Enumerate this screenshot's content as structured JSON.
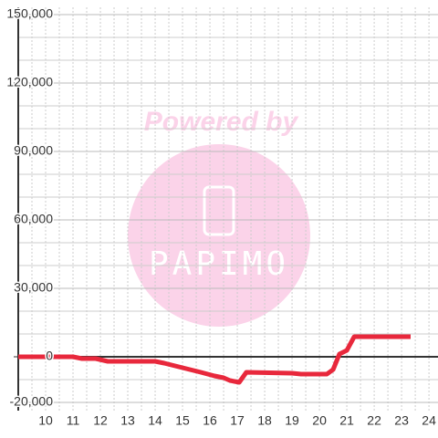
{
  "chart_data": {
    "type": "line",
    "x": [
      9,
      11,
      11.33,
      11.83,
      12.27,
      14,
      14.33,
      15,
      15.67,
      16.17,
      16.5,
      16.73,
      17.07,
      17.33,
      19,
      19.33,
      20.27,
      20.5,
      20.73,
      21,
      21.27,
      23.33
    ],
    "series": [
      {
        "color": "#e8283c",
        "values": [
          0,
          0,
          -800,
          -800,
          -2000,
          -2000,
          -2800,
          -4800,
          -6800,
          -8400,
          -9200,
          -10400,
          -11200,
          -6800,
          -7200,
          -7600,
          -7600,
          -5600,
          1200,
          2800,
          8800,
          8800
        ]
      }
    ],
    "xlim": [
      9,
      24.33
    ],
    "xticks": [
      10,
      11,
      12,
      13,
      14,
      15,
      16,
      17,
      18,
      19,
      20,
      21,
      22,
      23,
      24
    ],
    "xminor": [
      9.5,
      10.5,
      11.5,
      12.5,
      13.5,
      14.5,
      15.5,
      16.5,
      17.5,
      18.5,
      19.5,
      20.5,
      21.5,
      22.5,
      23.5
    ],
    "ylim": [
      -20000,
      150000
    ],
    "yticks": [
      {
        "value": -20000,
        "label": "-20,000"
      },
      0,
      {
        "value": 30000,
        "label": "30,000"
      },
      {
        "value": 60000,
        "label": "60,000"
      },
      {
        "value": 90000,
        "label": "90,000"
      },
      {
        "value": 120000,
        "label": "120,000"
      },
      {
        "value": 150000,
        "label": "150,000"
      }
    ],
    "yminor": [
      -10000,
      10000,
      20000,
      40000,
      50000,
      70000,
      80000,
      100000,
      110000,
      130000,
      140000
    ],
    "grid": true,
    "watermark": {
      "heading": "Powered by",
      "logo": "PAPIMO"
    }
  }
}
